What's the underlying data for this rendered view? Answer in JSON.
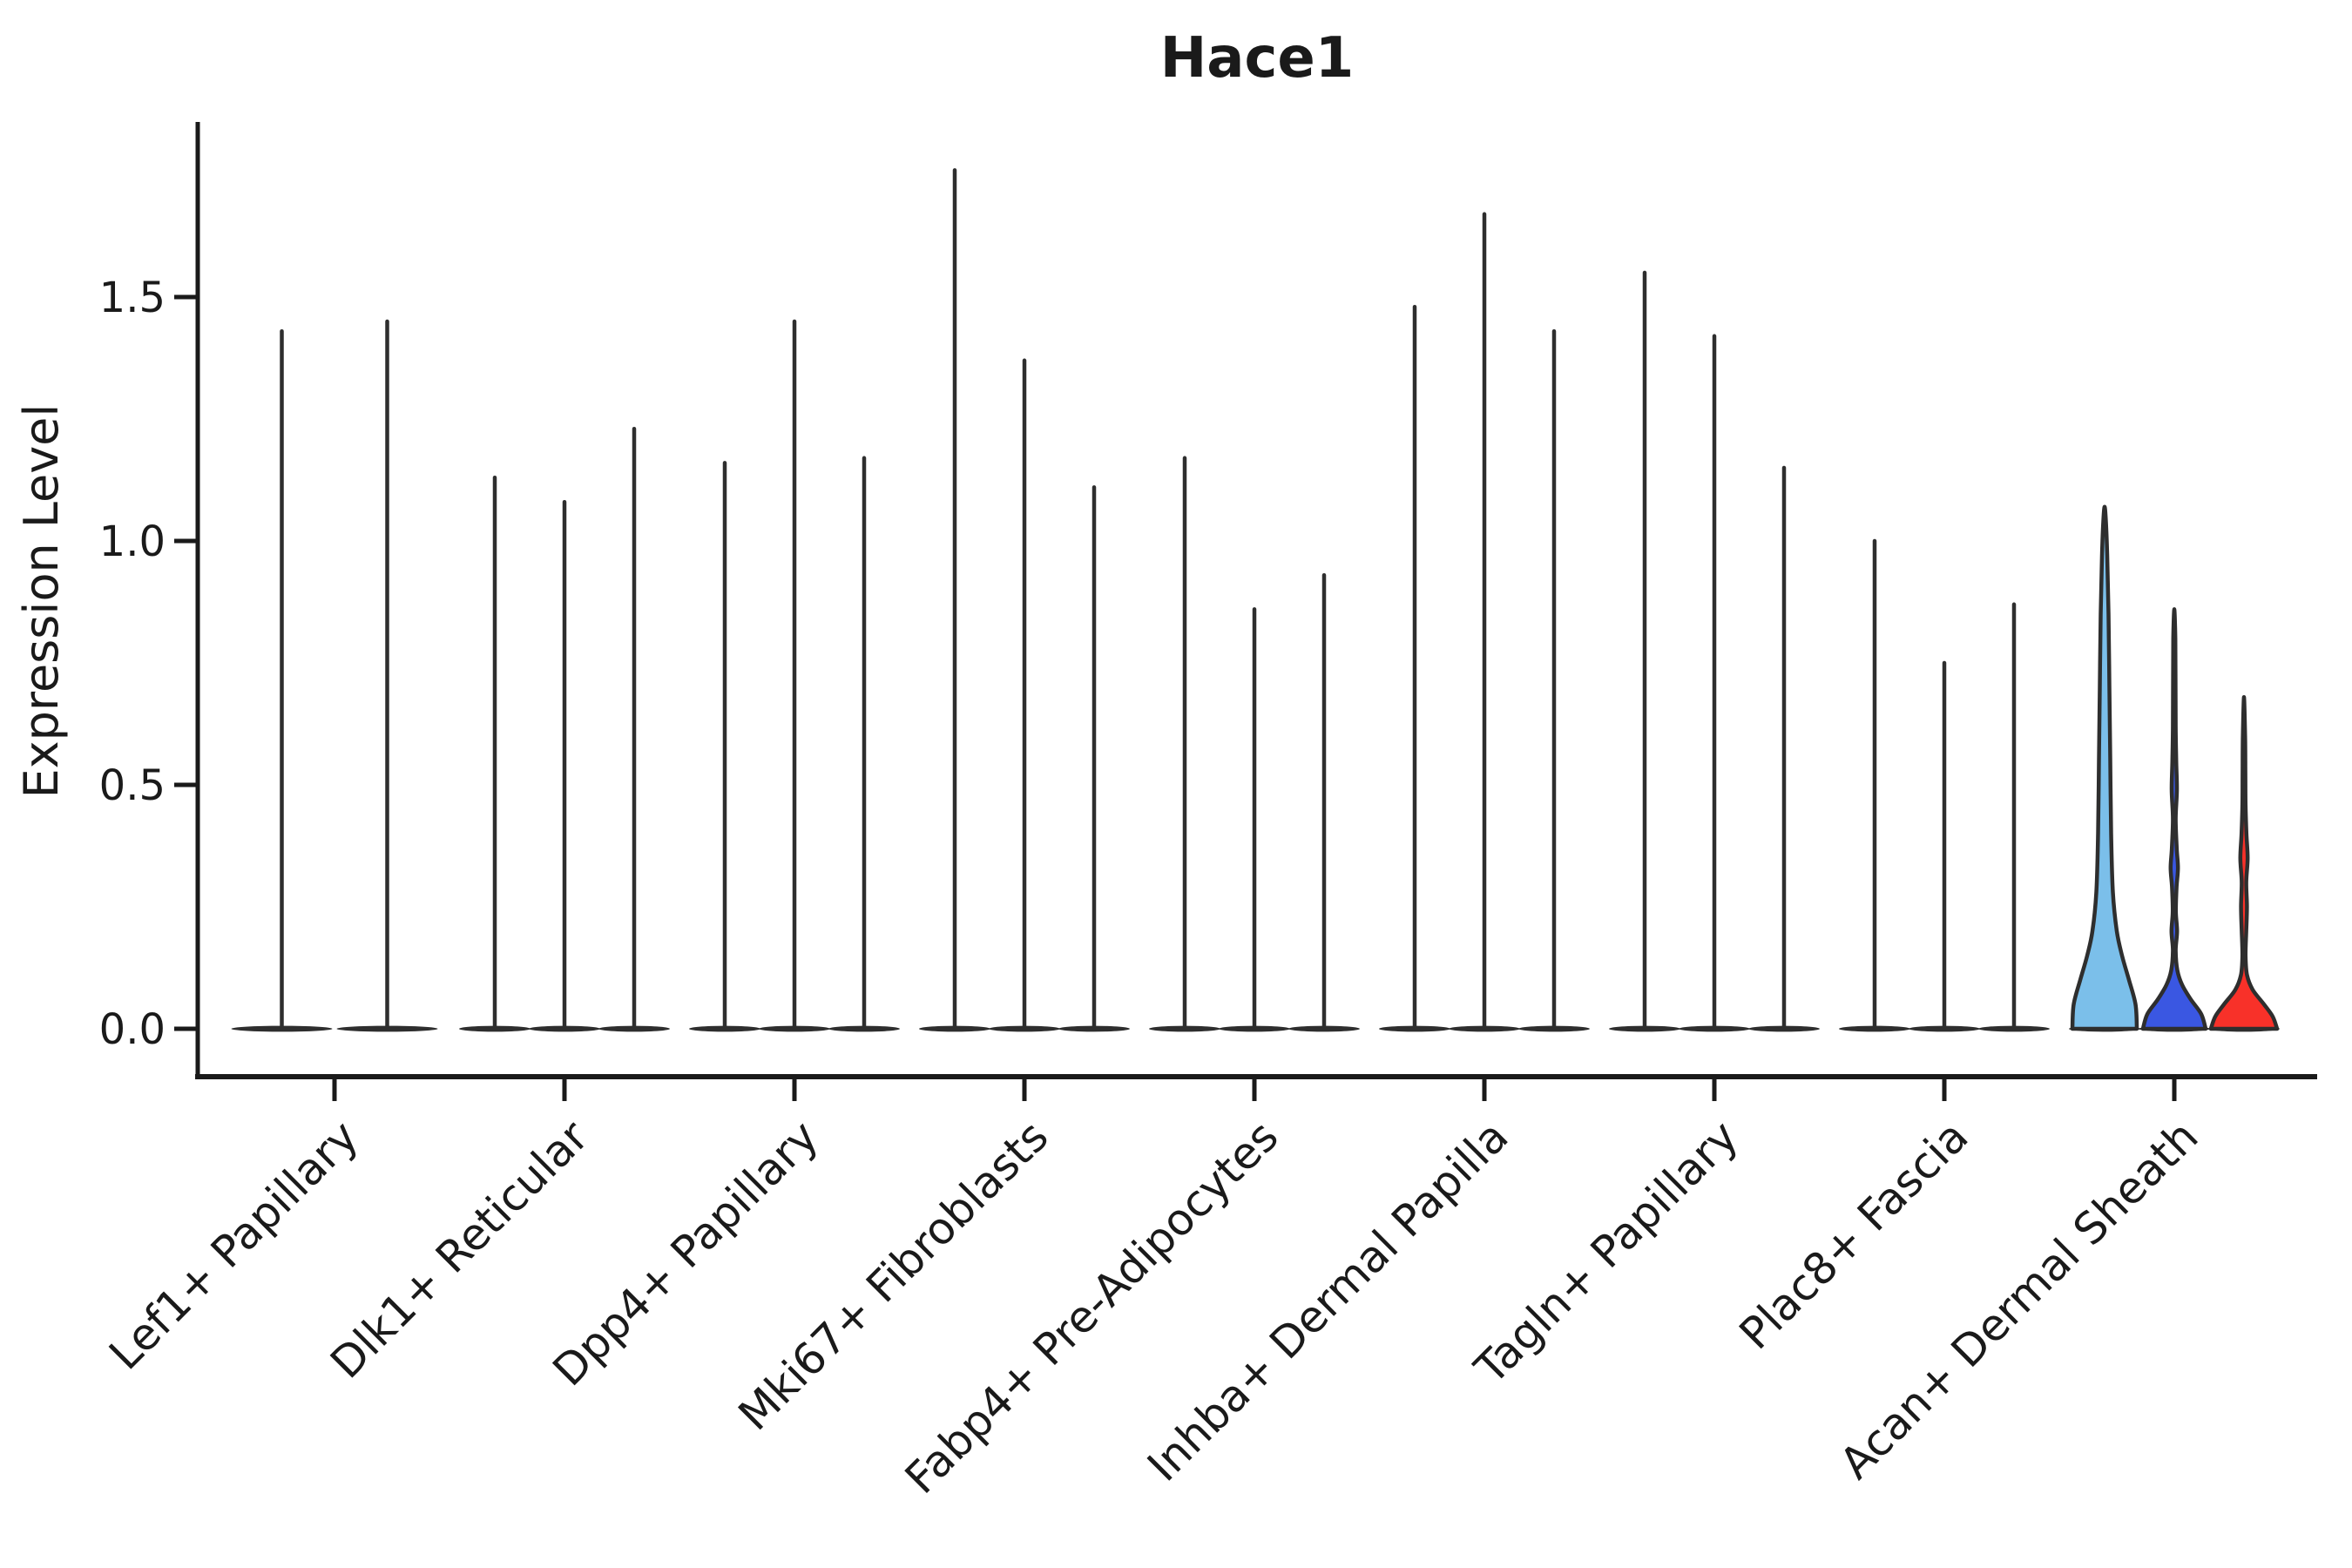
{
  "chart_data": {
    "type": "violin",
    "title": "Hace1",
    "ylabel": "Expression Level",
    "xlabel": "",
    "grid": false,
    "legend_position": "none",
    "ylim": [
      0,
      1.86
    ],
    "ytick_labels": [
      "0.0",
      "0.5",
      "1.0",
      "1.5"
    ],
    "ytick_values": [
      0.0,
      0.5,
      1.0,
      1.5
    ],
    "categories": [
      "Lef1+ Papillary",
      "Dlk1+ Reticular",
      "Dpp4+ Papillary",
      "Mki67+ Fibroblasts",
      "Fabp4+ Pre-Adipocytes",
      "Inhba+ Dermal Papilla",
      "Tagln+ Papillary",
      "Plac8+ Fascia",
      "Acan+ Dermal Sheath"
    ],
    "description": "Split violin plot of Hace1 expression; most violins collapse to a flat base at 0 with a thin spike to the max expression value. Last cluster has three colored violins.",
    "groups": [
      {
        "category": "Lef1+ Papillary",
        "violins": [
          {
            "max": 1.43,
            "color": "dark"
          },
          {
            "max": 1.45,
            "color": "dark"
          }
        ]
      },
      {
        "category": "Dlk1+ Reticular",
        "violins": [
          {
            "max": 1.13,
            "color": "dark"
          },
          {
            "max": 1.08,
            "color": "dark"
          },
          {
            "max": 1.23,
            "color": "dark"
          }
        ]
      },
      {
        "category": "Dpp4+ Papillary",
        "violins": [
          {
            "max": 1.16,
            "color": "dark"
          },
          {
            "max": 1.45,
            "color": "dark"
          },
          {
            "max": 1.17,
            "color": "dark"
          }
        ]
      },
      {
        "category": "Mki67+ Fibroblasts",
        "violins": [
          {
            "max": 1.76,
            "color": "dark"
          },
          {
            "max": 1.37,
            "color": "dark"
          },
          {
            "max": 1.11,
            "color": "dark"
          }
        ]
      },
      {
        "category": "Fabp4+ Pre-Adipocytes",
        "violins": [
          {
            "max": 1.17,
            "color": "dark"
          },
          {
            "max": 0.86,
            "color": "dark"
          },
          {
            "max": 0.93,
            "color": "dark"
          }
        ]
      },
      {
        "category": "Inhba+ Dermal Papilla",
        "violins": [
          {
            "max": 1.48,
            "color": "dark"
          },
          {
            "max": 1.67,
            "color": "dark"
          },
          {
            "max": 1.43,
            "color": "dark"
          }
        ]
      },
      {
        "category": "Tagln+ Papillary",
        "violins": [
          {
            "max": 1.55,
            "color": "dark"
          },
          {
            "max": 1.42,
            "color": "dark"
          },
          {
            "max": 1.15,
            "color": "dark"
          }
        ]
      },
      {
        "category": "Plac8+ Fascia",
        "violins": [
          {
            "max": 1.0,
            "color": "dark"
          },
          {
            "max": 0.75,
            "color": "dark"
          },
          {
            "max": 0.87,
            "color": "dark"
          }
        ]
      },
      {
        "category": "Acan+ Dermal Sheath",
        "violins": [
          {
            "max": 1.07,
            "color": "skyblue",
            "profile": [
              [
                0,
                37
              ],
              [
                0.05,
                35.5
              ],
              [
                0.1,
                28
              ],
              [
                0.15,
                20
              ],
              [
                0.2,
                14
              ],
              [
                0.28,
                9.5
              ],
              [
                0.4,
                7.5
              ],
              [
                0.55,
                6.5
              ],
              [
                0.7,
                5.5
              ],
              [
                0.85,
                4.5
              ],
              [
                0.97,
                3
              ],
              [
                1.04,
                1.5
              ],
              [
                1.07,
                0
              ]
            ]
          },
          {
            "max": 0.86,
            "color": "blue",
            "profile": [
              [
                0,
                36
              ],
              [
                0.03,
                31
              ],
              [
                0.06,
                19
              ],
              [
                0.09,
                9
              ],
              [
                0.12,
                3.5
              ],
              [
                0.16,
                1.6
              ],
              [
                0.2,
                3.2
              ],
              [
                0.24,
                1.8
              ],
              [
                0.29,
                2.6
              ],
              [
                0.33,
                4.2
              ],
              [
                0.37,
                2.8
              ],
              [
                0.43,
                1.6
              ],
              [
                0.49,
                3.0
              ],
              [
                0.55,
                2.2
              ],
              [
                0.62,
                1.6
              ],
              [
                0.72,
                1.4
              ],
              [
                0.8,
                1.2
              ],
              [
                0.86,
                0
              ]
            ]
          },
          {
            "max": 0.68,
            "color": "red",
            "profile": [
              [
                0,
                38
              ],
              [
                0.025,
                33
              ],
              [
                0.05,
                23
              ],
              [
                0.08,
                10
              ],
              [
                0.11,
                3.5
              ],
              [
                0.15,
                1.8
              ],
              [
                0.2,
                2.6
              ],
              [
                0.25,
                3.4
              ],
              [
                0.3,
                2.6
              ],
              [
                0.35,
                4.2
              ],
              [
                0.4,
                2.8
              ],
              [
                0.46,
                1.8
              ],
              [
                0.52,
                1.6
              ],
              [
                0.6,
                1.3
              ],
              [
                0.68,
                0
              ]
            ]
          }
        ]
      }
    ],
    "colors": {
      "dark": "#2e2e2e",
      "skyblue": "#7bbfea",
      "blue": "#3a57e2",
      "red": "#f83129",
      "axis": "#1a1a1a",
      "background": "#ffffff"
    }
  }
}
